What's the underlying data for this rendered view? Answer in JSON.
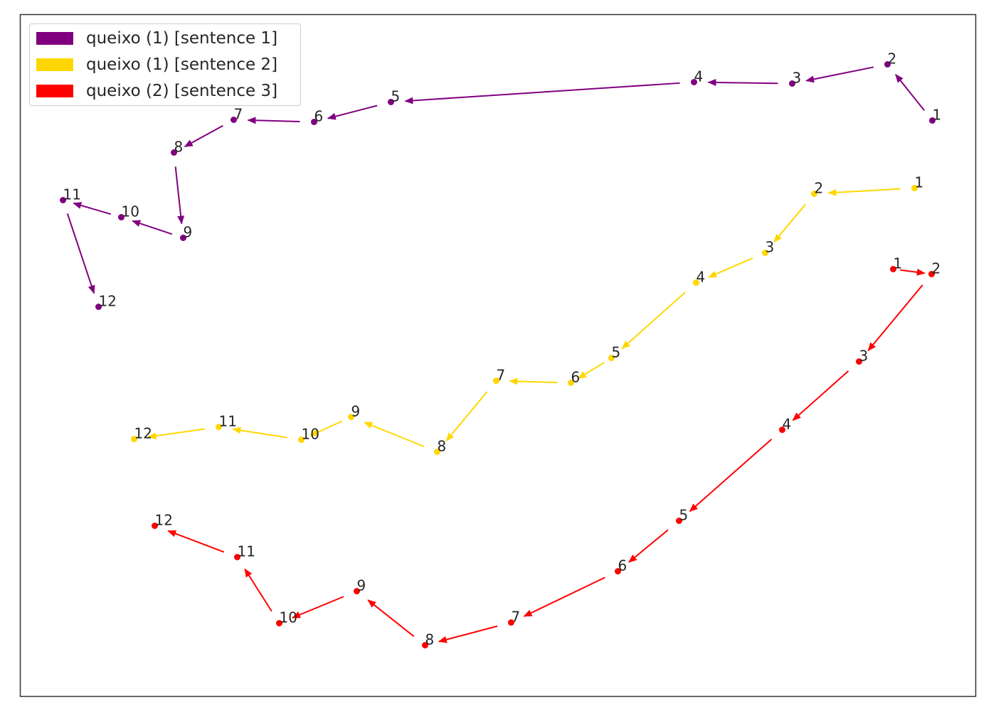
{
  "chart_data": {
    "type": "scatter",
    "title": "",
    "xlabel": "",
    "ylabel": "",
    "xlim": [
      0,
      1343
    ],
    "ylim": [
      0,
      959
    ],
    "grid": false,
    "legend_position": "top-left",
    "series": [
      {
        "name": "queixo (1) [sentence 1]",
        "color": "#800080",
        "points": [
          {
            "label": "1",
            "x": 1282,
            "y": 810
          },
          {
            "label": "2",
            "x": 1219,
            "y": 889
          },
          {
            "label": "3",
            "x": 1085,
            "y": 862
          },
          {
            "label": "4",
            "x": 947,
            "y": 864
          },
          {
            "label": "5",
            "x": 521,
            "y": 836
          },
          {
            "label": "6",
            "x": 413,
            "y": 808
          },
          {
            "label": "7",
            "x": 300,
            "y": 811
          },
          {
            "label": "8",
            "x": 216,
            "y": 765
          },
          {
            "label": "9",
            "x": 229,
            "y": 645
          },
          {
            "label": "10",
            "x": 142,
            "y": 674
          },
          {
            "label": "11",
            "x": 60,
            "y": 698
          },
          {
            "label": "12",
            "x": 110,
            "y": 548
          }
        ]
      },
      {
        "name": "queixo (1) [sentence 2]",
        "color": "#FFD700",
        "points": [
          {
            "label": "1",
            "x": 1257,
            "y": 715
          },
          {
            "label": "2",
            "x": 1116,
            "y": 707
          },
          {
            "label": "3",
            "x": 1047,
            "y": 624
          },
          {
            "label": "4",
            "x": 950,
            "y": 582
          },
          {
            "label": "5",
            "x": 831,
            "y": 476
          },
          {
            "label": "6",
            "x": 774,
            "y": 441
          },
          {
            "label": "7",
            "x": 669,
            "y": 444
          },
          {
            "label": "8",
            "x": 586,
            "y": 344
          },
          {
            "label": "9",
            "x": 465,
            "y": 393
          },
          {
            "label": "10",
            "x": 395,
            "y": 361
          },
          {
            "label": "11",
            "x": 279,
            "y": 379
          },
          {
            "label": "12",
            "x": 160,
            "y": 362
          }
        ]
      },
      {
        "name": "queixo (2) [sentence 3]",
        "color": "#FF0000",
        "points": [
          {
            "label": "1",
            "x": 1227,
            "y": 601
          },
          {
            "label": "2",
            "x": 1281,
            "y": 594
          },
          {
            "label": "3",
            "x": 1179,
            "y": 471
          },
          {
            "label": "4",
            "x": 1071,
            "y": 375
          },
          {
            "label": "5",
            "x": 926,
            "y": 247
          },
          {
            "label": "6",
            "x": 840,
            "y": 176
          },
          {
            "label": "7",
            "x": 690,
            "y": 104
          },
          {
            "label": "8",
            "x": 569,
            "y": 72
          },
          {
            "label": "9",
            "x": 473,
            "y": 148
          },
          {
            "label": "10",
            "x": 364,
            "y": 103
          },
          {
            "label": "11",
            "x": 305,
            "y": 196
          },
          {
            "label": "12",
            "x": 189,
            "y": 240
          }
        ]
      }
    ]
  }
}
